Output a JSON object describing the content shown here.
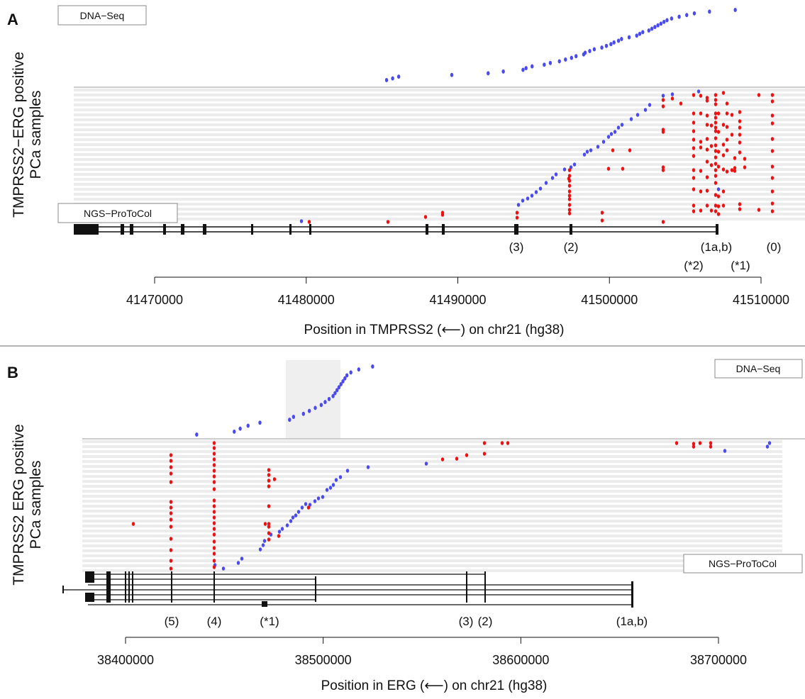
{
  "colors": {
    "dna_seq_point": "#4a4aee",
    "ngs_protocol_point": "#ee1111",
    "row_stripe": "#ececec",
    "highlight": "#efefef"
  },
  "chart_data": [
    {
      "panel": "A",
      "type": "scatter",
      "ylabel_line1": "TMPRSS2−ERG positive",
      "ylabel_line2": "PCa samples",
      "xlabel_pre": "Position in TMPRSS2 (",
      "xlabel_post": ") on chr21 (hg38)",
      "tick_values": [
        41470000,
        41480000,
        41490000,
        41500000,
        41510000
      ],
      "tick_labels": [
        "41470000",
        "41480000",
        "41490000",
        "41500000",
        "41510000"
      ],
      "xlim": [
        41464000,
        41512000
      ],
      "dna_seq_label": "DNA−Seq",
      "ngs_label": "NGS−ProToCol",
      "exon_labels": [
        "(3)",
        "(2)",
        "(1a,b)",
        "(0)",
        "(*2)",
        "(*1)"
      ],
      "series": [
        {
          "name": "DNA−Seq",
          "x": [
            41485300,
            41485700,
            41486100,
            41489600,
            41492000,
            41493000,
            41494300,
            41494500,
            41494900,
            41495700,
            41496100,
            41496700,
            41497100,
            41497500,
            41497800,
            41498300,
            41498400,
            41498700,
            41499000,
            41499500,
            41499800,
            41500100,
            41500300,
            41500600,
            41500800,
            41501300,
            41501800,
            41502000,
            41502200,
            41502600,
            41502800,
            41503000,
            41503200,
            41503400,
            41503600,
            41503800,
            41504100,
            41504600,
            41505100,
            41505600,
            41506600,
            41508300
          ],
          "y": [
            1,
            2,
            3,
            4,
            5,
            6,
            7,
            8,
            9,
            10,
            11,
            12,
            13,
            14,
            15,
            16,
            17,
            18,
            19,
            20,
            21,
            22,
            23,
            24,
            25,
            26,
            27,
            28,
            29,
            30,
            31,
            32,
            33,
            34,
            35,
            36,
            37,
            38,
            39,
            40,
            41,
            42
          ]
        }
      ]
    },
    {
      "panel": "B",
      "type": "scatter",
      "ylabel_line1": "TMPRSS2  ERG positive",
      "ylabel_line2": "PCa samples",
      "xlabel_pre": "Position in ERG (",
      "xlabel_post": ") on chr21 (hg38)",
      "tick_values": [
        38400000,
        38500000,
        38600000,
        38700000
      ],
      "tick_labels": [
        "38400000",
        "38500000",
        "38600000",
        "38700000"
      ],
      "xlim": [
        38355000,
        38735000
      ],
      "dna_seq_label": "DNA−Seq",
      "ngs_label": "NGS−ProToCol",
      "exon_labels": [
        "(5)",
        "(4)",
        "(*1)",
        "(3)",
        "(2)",
        "(1a,b)"
      ],
      "series": [
        {
          "name": "DNA−Seq",
          "x": [
            38436000,
            38455000,
            38458000,
            38462000,
            38468000,
            38483000,
            38485000,
            38490000,
            38493000,
            38496000,
            38499000,
            38501000,
            38503000,
            38505000,
            38506000,
            38507000,
            38508000,
            38509000,
            38510000,
            38511000,
            38512000,
            38514000,
            38518000,
            38525000
          ],
          "y": [
            1,
            2,
            3,
            4,
            5,
            6,
            7,
            8,
            9,
            10,
            11,
            12,
            13,
            14,
            15,
            16,
            17,
            18,
            19,
            20,
            21,
            22,
            23,
            24
          ]
        }
      ]
    }
  ]
}
